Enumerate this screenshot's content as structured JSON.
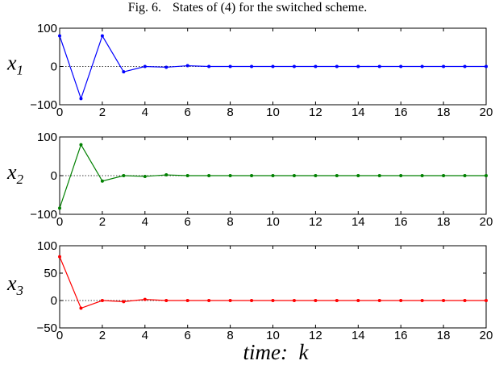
{
  "caption": {
    "label": "Fig. 6.",
    "text": "States of (4) for the switched scheme."
  },
  "chart_data": [
    {
      "type": "line",
      "ylabel_main": "x",
      "ylabel_sub": "1",
      "xlabel": "",
      "color": "#0000ff",
      "xlim": [
        0,
        20
      ],
      "ylim": [
        -100,
        100
      ],
      "yticks": [
        -100,
        0,
        100
      ],
      "xticks": [
        0,
        2,
        4,
        6,
        8,
        10,
        12,
        14,
        16,
        18,
        20
      ],
      "zero_line": "dotted",
      "x": [
        0,
        1,
        2,
        3,
        4,
        5,
        6,
        7,
        8,
        9,
        10,
        11,
        12,
        13,
        14,
        15,
        16,
        17,
        18,
        19,
        20
      ],
      "values": [
        80,
        -84,
        80,
        -14,
        0,
        -2,
        2,
        0,
        0,
        0,
        0,
        0,
        0,
        0,
        0,
        0,
        0,
        0,
        0,
        0,
        0
      ]
    },
    {
      "type": "line",
      "ylabel_main": "x",
      "ylabel_sub": "2",
      "xlabel": "",
      "color": "#008000",
      "xlim": [
        0,
        20
      ],
      "ylim": [
        -100,
        100
      ],
      "yticks": [
        -100,
        0,
        100
      ],
      "xticks": [
        0,
        2,
        4,
        6,
        8,
        10,
        12,
        14,
        16,
        18,
        20
      ],
      "zero_line": "dotted",
      "x": [
        0,
        1,
        2,
        3,
        4,
        5,
        6,
        7,
        8,
        9,
        10,
        11,
        12,
        13,
        14,
        15,
        16,
        17,
        18,
        19,
        20
      ],
      "values": [
        -84,
        80,
        -14,
        0,
        -2,
        2,
        0,
        0,
        0,
        0,
        0,
        0,
        0,
        0,
        0,
        0,
        0,
        0,
        0,
        0,
        0
      ]
    },
    {
      "type": "line",
      "ylabel_main": "x",
      "ylabel_sub": "3",
      "xlabel": "time:  k",
      "color": "#ff0000",
      "xlim": [
        0,
        20
      ],
      "ylim": [
        -50,
        100
      ],
      "yticks": [
        -50,
        0,
        50,
        100
      ],
      "xticks": [
        0,
        2,
        4,
        6,
        8,
        10,
        12,
        14,
        16,
        18,
        20
      ],
      "zero_line": "dotted",
      "x": [
        0,
        1,
        2,
        3,
        4,
        5,
        6,
        7,
        8,
        9,
        10,
        11,
        12,
        13,
        14,
        15,
        16,
        17,
        18,
        19,
        20
      ],
      "values": [
        80,
        -14,
        0,
        -2,
        2,
        0,
        0,
        0,
        0,
        0,
        0,
        0,
        0,
        0,
        0,
        0,
        0,
        0,
        0,
        0,
        0
      ]
    }
  ]
}
